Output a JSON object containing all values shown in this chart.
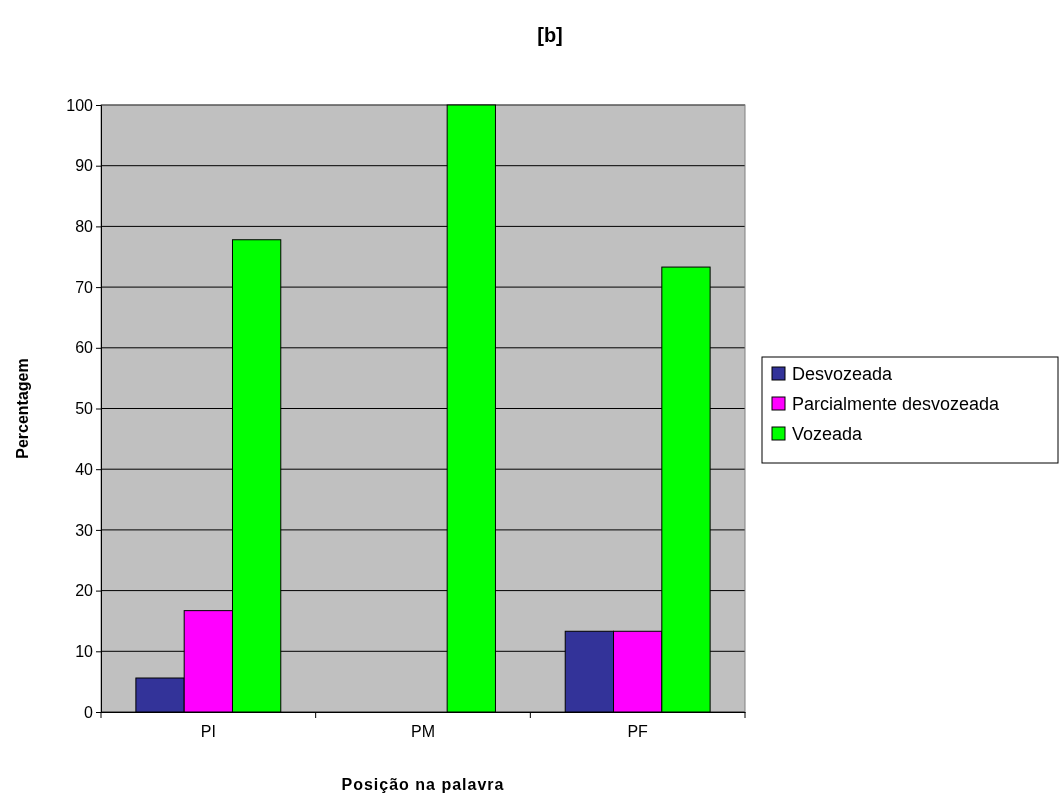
{
  "chart_data": {
    "type": "bar",
    "title": "[b]",
    "xlabel": "Posição na palavra",
    "ylabel": "Percentagem",
    "categories": [
      "PI",
      "PM",
      "PF"
    ],
    "series": [
      {
        "name": "Desvozeada",
        "color": "#333399",
        "values": [
          5.6,
          0,
          13.3
        ]
      },
      {
        "name": "Parcialmente desvozeada",
        "color": "#ff00ff",
        "values": [
          16.7,
          0,
          13.3
        ]
      },
      {
        "name": "Vozeada",
        "color": "#00ff00",
        "values": [
          77.8,
          100,
          73.3
        ]
      }
    ],
    "ylim": [
      0,
      100
    ],
    "yticks": [
      0,
      10,
      20,
      30,
      40,
      50,
      60,
      70,
      80,
      90,
      100
    ],
    "grid": "y",
    "legend": "right"
  }
}
